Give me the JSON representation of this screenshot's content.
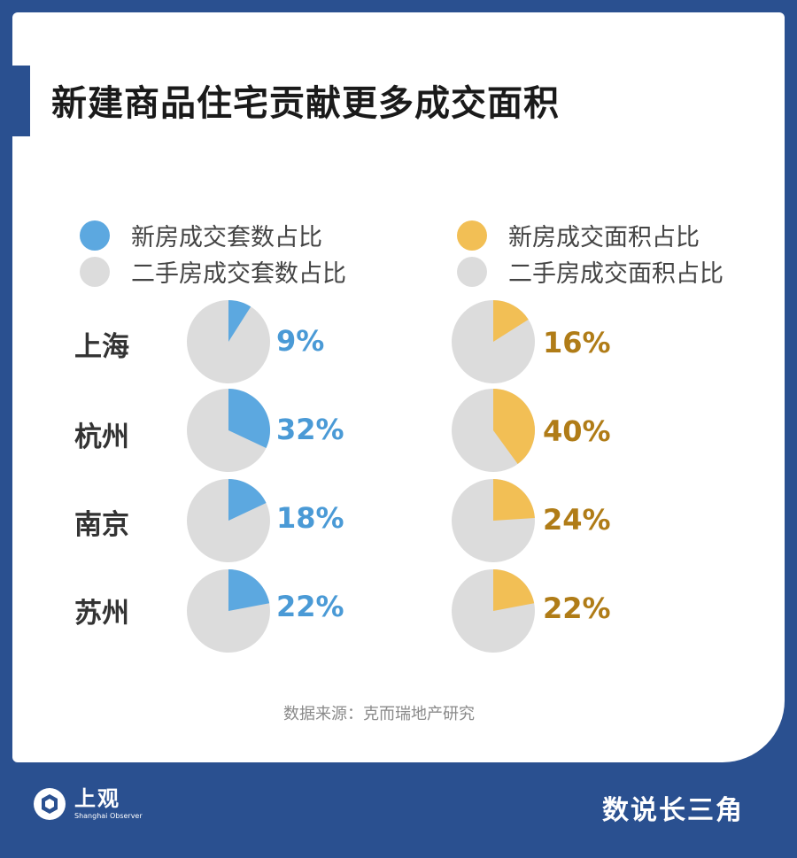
{
  "title": "新建商品住宅贡献更多成交面积",
  "legend": {
    "left": [
      {
        "label": "新房成交套数占比",
        "color": "#5ca8e0"
      },
      {
        "label": "二手房成交套数占比",
        "color": "#dcdcdc"
      }
    ],
    "right": [
      {
        "label": "新房成交面积占比",
        "color": "#f2bf55"
      },
      {
        "label": "二手房成交面积占比",
        "color": "#dcdcdc"
      }
    ]
  },
  "chart_data": [
    {
      "type": "pie",
      "series_name": "新房成交套数占比",
      "categories": [
        "上海",
        "杭州",
        "南京",
        "苏州"
      ],
      "values": [
        9,
        32,
        18,
        22
      ],
      "labels": [
        "9%",
        "32%",
        "18%",
        "22%"
      ],
      "color": "#5ca8e0",
      "remainder_color": "#dcdcdc",
      "label_color": "#4a9ad6"
    },
    {
      "type": "pie",
      "series_name": "新房成交面积占比",
      "categories": [
        "上海",
        "杭州",
        "南京",
        "苏州"
      ],
      "values": [
        16,
        40,
        24,
        22
      ],
      "labels": [
        "16%",
        "40%",
        "24%",
        "22%"
      ],
      "color": "#f2bf55",
      "remainder_color": "#dcdcdc",
      "label_color": "#b07c17"
    }
  ],
  "source": "数据来源：克而瑞地产研究",
  "footer": {
    "logo_main": "上观",
    "logo_sub": "Shanghai Observer",
    "right": "数说长三角"
  }
}
